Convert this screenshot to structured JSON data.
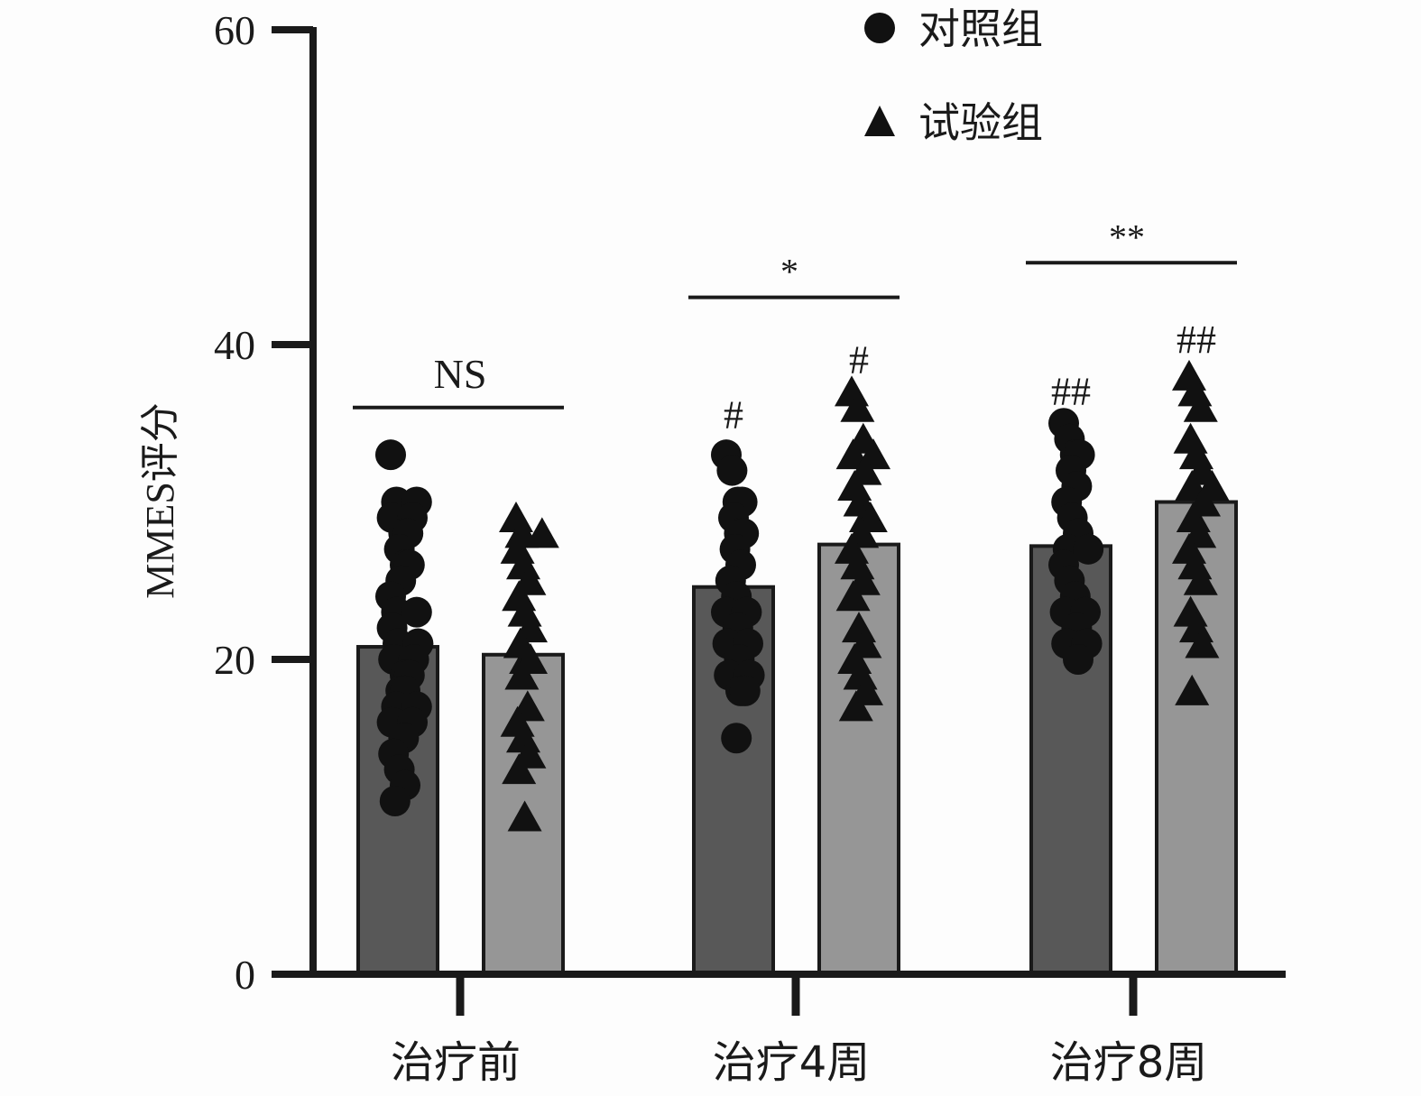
{
  "chart_data": {
    "type": "bar",
    "ylabel": "MMES评分",
    "ylim": [
      0,
      60
    ],
    "yticks": [
      "0",
      "20",
      "40",
      "60"
    ],
    "categories": [
      "治疗前",
      "治疗4周",
      "治疗8周"
    ],
    "series": [
      {
        "name": "对照组",
        "marker": "circle",
        "color": "#585858",
        "values": [
          20.8,
          24.6,
          27.2
        ],
        "points": [
          [
            33,
            30,
            30,
            29,
            29,
            28,
            28,
            27,
            26,
            26,
            25,
            24,
            23,
            23,
            22,
            21,
            21,
            20,
            20,
            19,
            19,
            18,
            18,
            17,
            17,
            16,
            16,
            15,
            14,
            13,
            12,
            11
          ],
          [
            33,
            32,
            30,
            30,
            29,
            28,
            28,
            27,
            26,
            25,
            24,
            23,
            23,
            22,
            21,
            21,
            20,
            19,
            19,
            18,
            18,
            15
          ],
          [
            35,
            34,
            33,
            33,
            32,
            31,
            30,
            29,
            28,
            27,
            27,
            26,
            25,
            24,
            23,
            23,
            22,
            21,
            21,
            20
          ]
        ]
      },
      {
        "name": "试验组",
        "marker": "triangle",
        "color": "#969696",
        "values": [
          20.3,
          27.3,
          30.0
        ],
        "points": [
          [
            29,
            28,
            28,
            27,
            26,
            25,
            24,
            23,
            22,
            21,
            20,
            20,
            19,
            17,
            16,
            15,
            14,
            13,
            10
          ],
          [
            37,
            36,
            34,
            33,
            33,
            32,
            31,
            30,
            29,
            29,
            28,
            27,
            26,
            25,
            24,
            22,
            21,
            20,
            19,
            18,
            17
          ],
          [
            38,
            37,
            36,
            34,
            33,
            32,
            31,
            31,
            30,
            29,
            28,
            27,
            26,
            25,
            23,
            22,
            21,
            18
          ]
        ]
      }
    ],
    "significance": [
      {
        "label": "NS",
        "level": 36
      },
      {
        "label": "*",
        "level": 43
      },
      {
        "label": "**",
        "level": 45.2
      }
    ],
    "within_group_marks": [
      {
        "category": 1,
        "series": 0,
        "label": "#",
        "y": 35.5
      },
      {
        "category": 1,
        "series": 1,
        "label": "#",
        "y": 39
      },
      {
        "category": 2,
        "series": 0,
        "label": "##",
        "y": 37
      },
      {
        "category": 2,
        "series": 1,
        "label": "##",
        "y": 40.3
      }
    ],
    "legend_position": "top-right"
  }
}
